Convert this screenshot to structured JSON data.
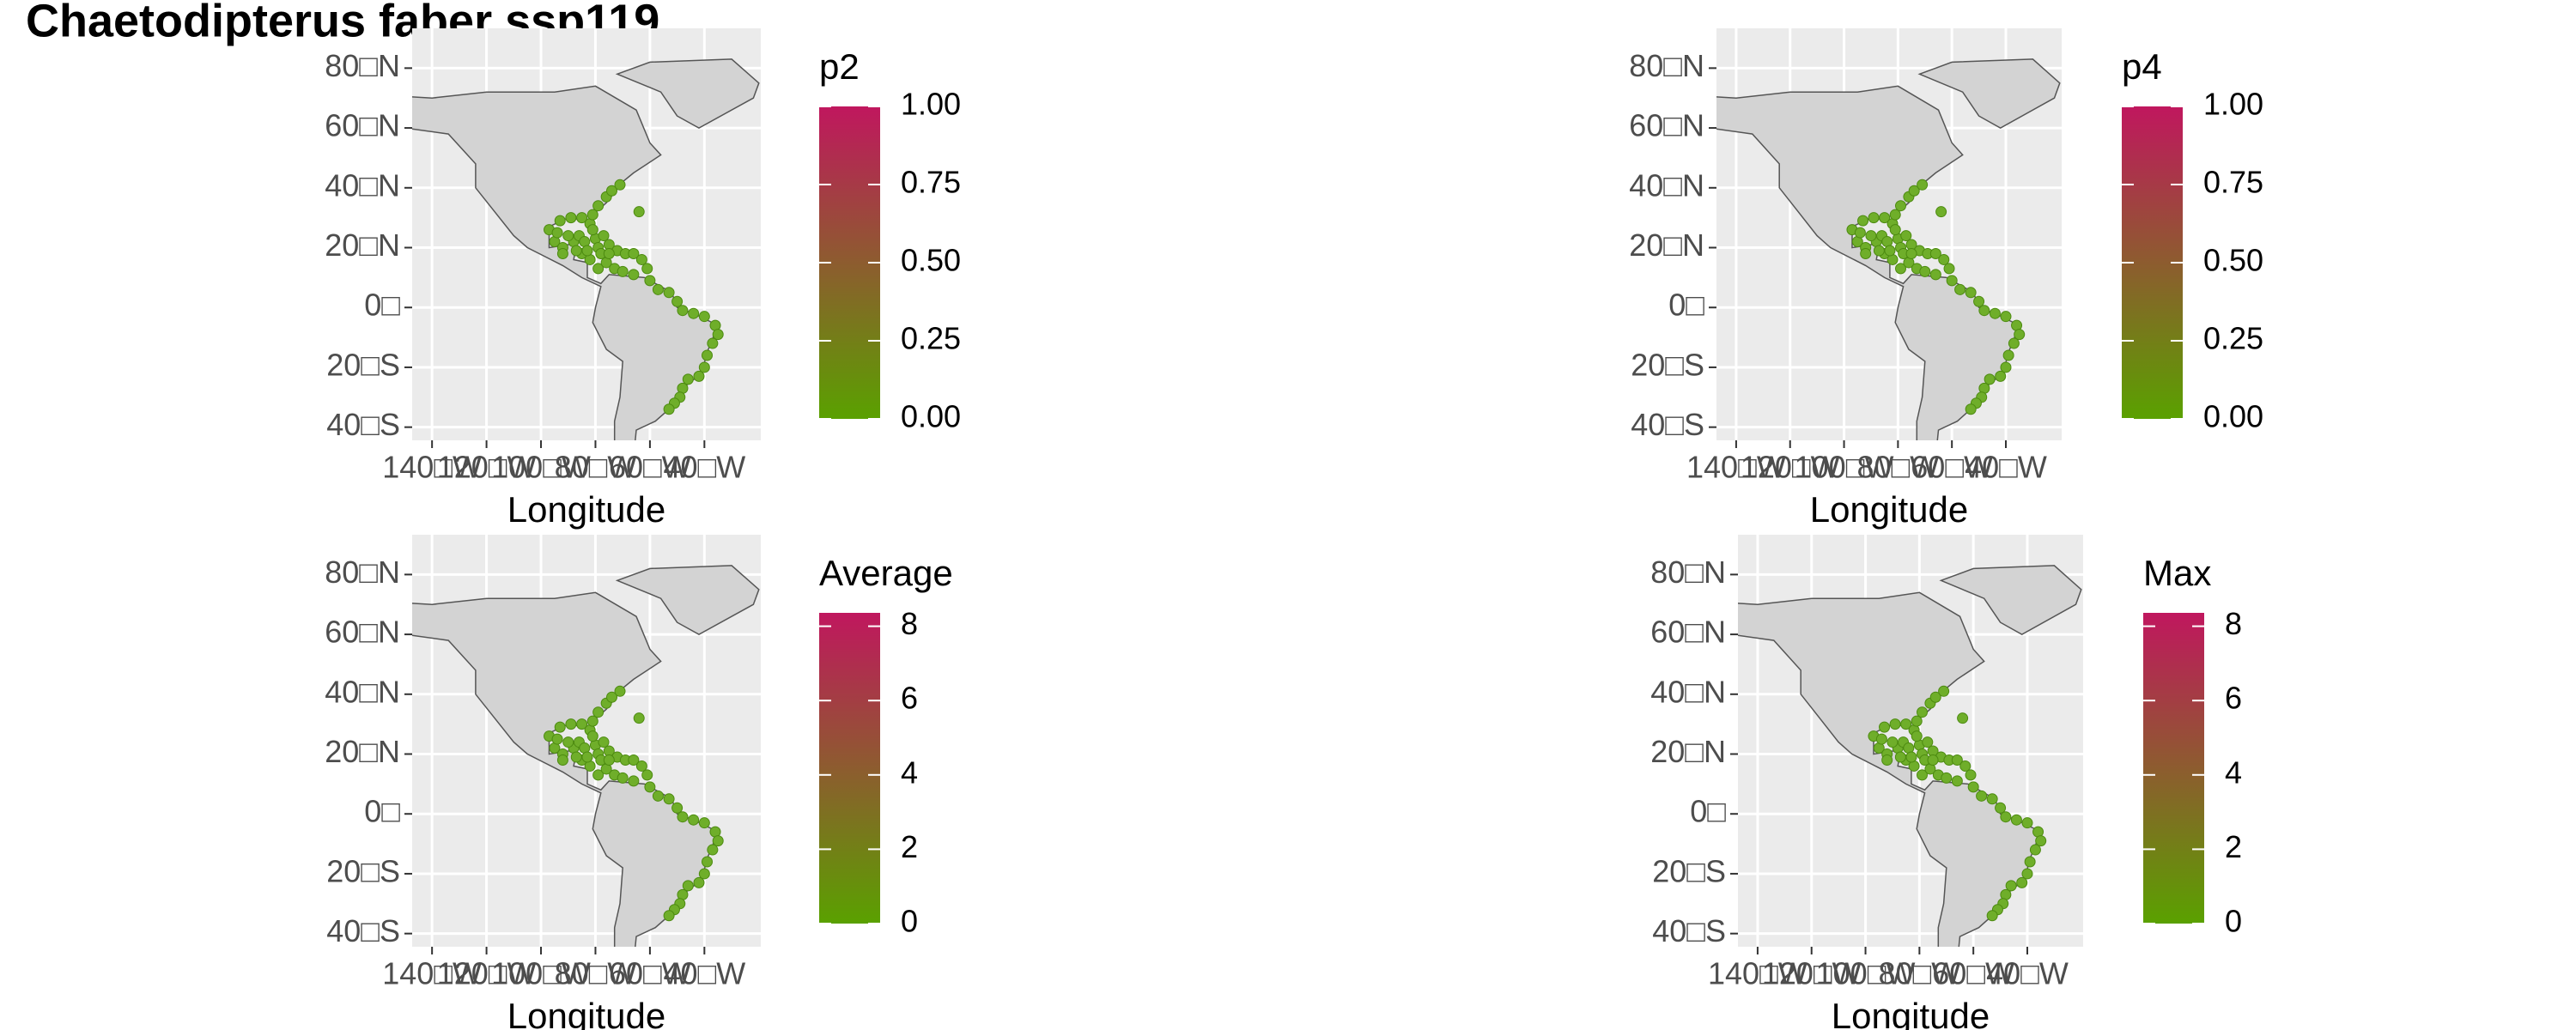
{
  "title": "Chaetodipterus faber ssp119",
  "axes": {
    "x_label": "Longitude",
    "xlim": [
      -147.3,
      -19.3
    ],
    "ylim": [
      -44.4,
      93.3
    ],
    "xticks": [
      {
        "value": -140,
        "label": "140□W"
      },
      {
        "value": -120,
        "label": "120□W"
      },
      {
        "value": -100,
        "label": "100□W"
      },
      {
        "value": -80,
        "label": "80□W"
      },
      {
        "value": -60,
        "label": "60□W"
      },
      {
        "value": -40,
        "label": "40□W"
      }
    ],
    "yticks": [
      {
        "value": 80,
        "label": "80□N"
      },
      {
        "value": 60,
        "label": "60□N"
      },
      {
        "value": 40,
        "label": "40□N"
      },
      {
        "value": 20,
        "label": "20□N"
      },
      {
        "value": 0,
        "label": "0□"
      },
      {
        "value": -20,
        "label": "20□S"
      },
      {
        "value": -40,
        "label": "40□S"
      }
    ],
    "panel_color": "#ebebeb",
    "grid_color": "#ffffff",
    "land_color": "#d3d3d3",
    "cell_color": "#6fae2a"
  },
  "panels": [
    {
      "legend_title": "p2",
      "legend_lim": [
        0,
        1
      ],
      "low_color": "#5aa100",
      "high_color": "#c0175e",
      "legend_ticks": [
        {
          "value": 0,
          "label": "0.00"
        },
        {
          "value": 0.25,
          "label": "0.25"
        },
        {
          "value": 0.5,
          "label": "0.50"
        },
        {
          "value": 0.75,
          "label": "0.75"
        },
        {
          "value": 1,
          "label": "1.00"
        }
      ]
    },
    {
      "legend_title": "p4",
      "legend_lim": [
        0,
        1
      ],
      "low_color": "#5aa100",
      "high_color": "#c0175e",
      "legend_ticks": [
        {
          "value": 0,
          "label": "0.00"
        },
        {
          "value": 0.25,
          "label": "0.25"
        },
        {
          "value": 0.5,
          "label": "0.50"
        },
        {
          "value": 0.75,
          "label": "0.75"
        },
        {
          "value": 1,
          "label": "1.00"
        }
      ]
    },
    {
      "legend_title": "Average",
      "legend_lim": [
        0,
        8.36
      ],
      "low_color": "#5aa100",
      "high_color": "#c0175e",
      "legend_ticks": [
        0,
        2,
        4,
        6,
        8
      ]
    },
    {
      "legend_title": "Max",
      "legend_lim": [
        0,
        8.36
      ],
      "low_color": "#5aa100",
      "high_color": "#c0175e",
      "legend_ticks": [
        0,
        2,
        4,
        6,
        8
      ]
    }
  ]
}
